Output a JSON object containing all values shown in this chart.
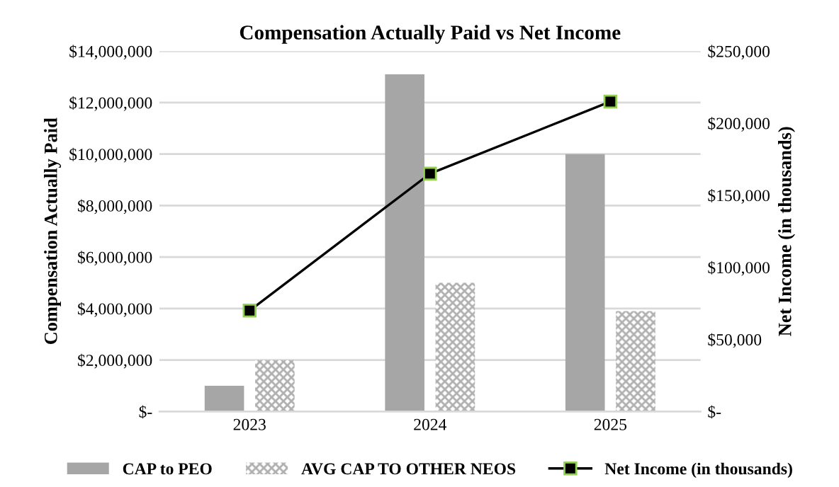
{
  "chart_data": {
    "type": "bar",
    "title": "Compensation Actually Paid vs Net Income",
    "categories": [
      "2023",
      "2024",
      "2025"
    ],
    "ylabel": "Compensation Actually Paid",
    "y2label": "Net Income (in thousands)",
    "series": [
      {
        "name": "CAP to PEO",
        "color": "#a6a6a6",
        "values": [
          1000000,
          13100000,
          10000000
        ]
      },
      {
        "name": "AVG CAP TO OTHER NEOS",
        "color": "#b0b0b0",
        "values": [
          2000000,
          5000000,
          3900000
        ]
      },
      {
        "name": "Net Income (in thousands)",
        "type": "line",
        "axis": "y2",
        "color": "#000000",
        "marker": "square",
        "values": [
          70000,
          165000,
          215000
        ]
      }
    ],
    "ylim": [
      0,
      14000000
    ],
    "yticks": [
      {
        "value": 0,
        "label": "$-"
      },
      {
        "value": 2000000,
        "label": "$2,000,000"
      },
      {
        "value": 4000000,
        "label": "$4,000,000"
      },
      {
        "value": 6000000,
        "label": "$6,000,000"
      },
      {
        "value": 8000000,
        "label": "$8,000,000"
      },
      {
        "value": 10000000,
        "label": "$10,000,000"
      },
      {
        "value": 12000000,
        "label": "$12,000,000"
      },
      {
        "value": 14000000,
        "label": "$14,000,000"
      }
    ],
    "y2lim": [
      0,
      250000
    ],
    "y2ticks": [
      {
        "value": 0,
        "label": "$-"
      },
      {
        "value": 50000,
        "label": "$50,000"
      },
      {
        "value": 100000,
        "label": "$100,000"
      },
      {
        "value": 150000,
        "label": "$150,000"
      },
      {
        "value": 200000,
        "label": "$200,000"
      },
      {
        "value": 250000,
        "label": "$250,000"
      }
    ],
    "grid": "y",
    "legend": "bottom"
  }
}
